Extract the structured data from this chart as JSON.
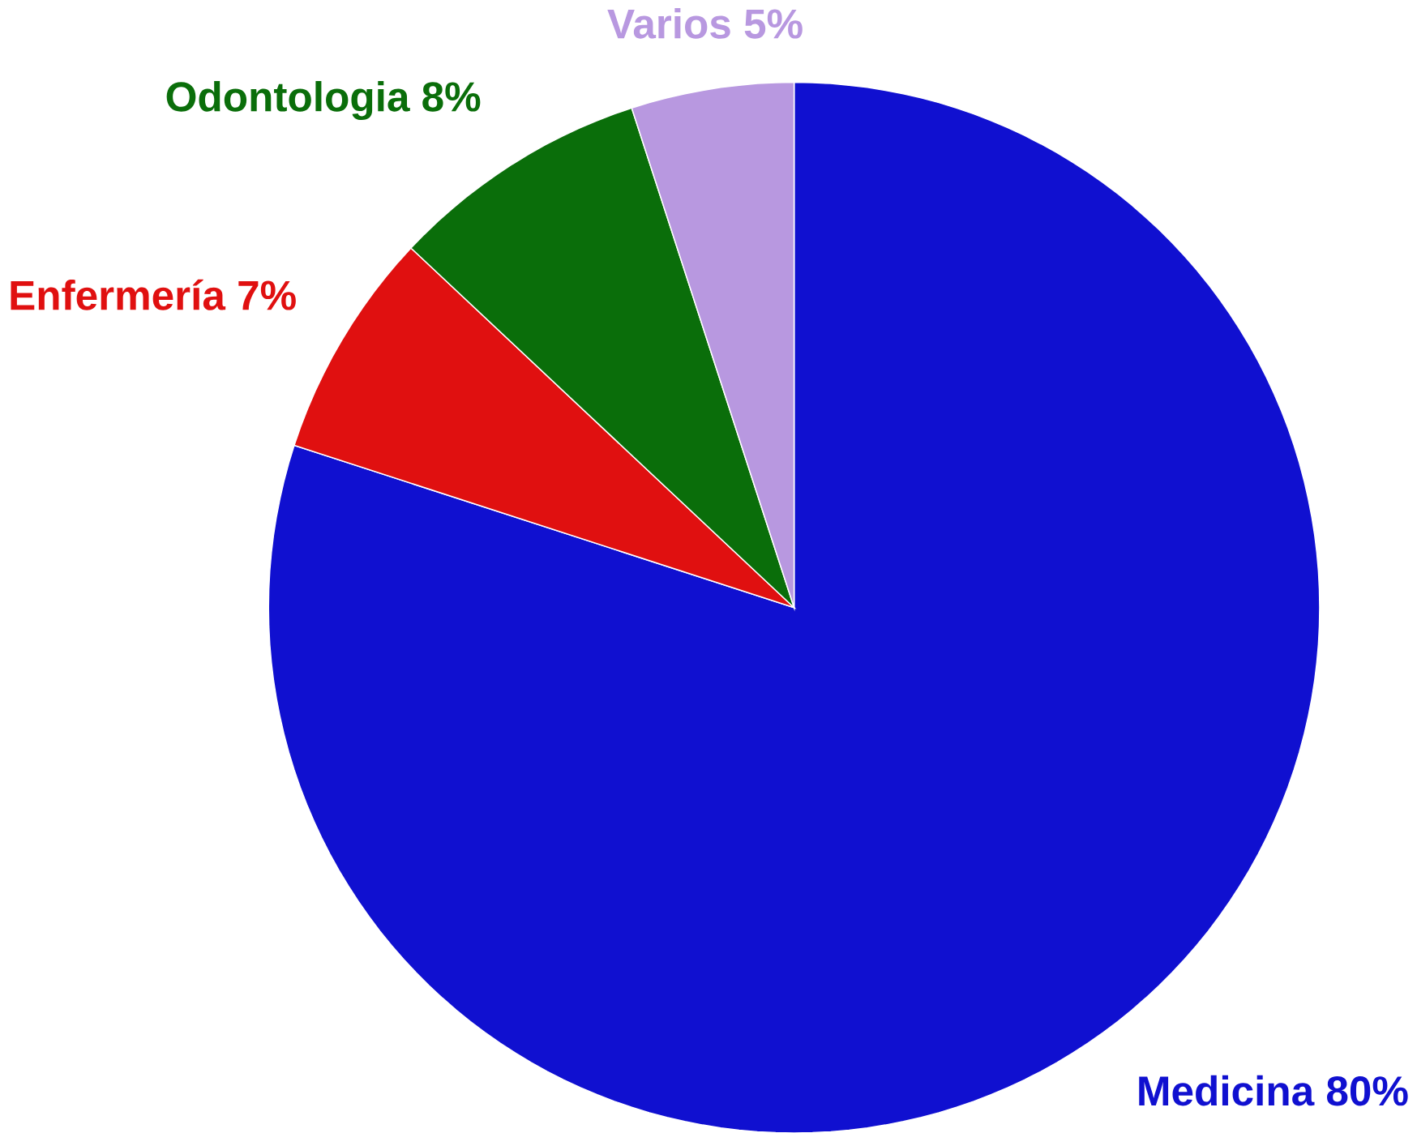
{
  "chart_data": {
    "type": "pie",
    "categories": [
      "Medicina",
      "Enfermería",
      "Odontologia",
      "Varios"
    ],
    "values": [
      80,
      7,
      8,
      5
    ],
    "value_labels": [
      "80%",
      "7%",
      "8%",
      "5%"
    ],
    "colors": [
      "#1010d0",
      "#e01010",
      "#0a6e0a",
      "#b898e0"
    ]
  }
}
